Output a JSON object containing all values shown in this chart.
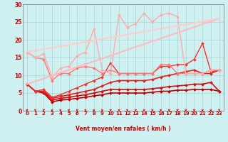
{
  "xlabel": "Vent moyen/en rafales ( km/h )",
  "xlim": [
    -0.5,
    23.5
  ],
  "ylim": [
    0,
    30
  ],
  "yticks": [
    0,
    5,
    10,
    15,
    20,
    25,
    30
  ],
  "xticks": [
    0,
    1,
    2,
    3,
    4,
    5,
    6,
    7,
    8,
    9,
    10,
    11,
    12,
    13,
    14,
    15,
    16,
    17,
    18,
    19,
    20,
    21,
    22,
    23
  ],
  "bg_color": "#cff0f0",
  "grid_color": "#99cccc",
  "series": [
    {
      "x": [
        0,
        1,
        2,
        3,
        4,
        5,
        6,
        7,
        8,
        9,
        10,
        11,
        12,
        13,
        14,
        15,
        16,
        17,
        18,
        19,
        20,
        21,
        22,
        23
      ],
      "y": [
        7.5,
        5.5,
        5.0,
        2.5,
        3.0,
        3.2,
        3.5,
        3.8,
        4.2,
        4.5,
        5.0,
        5.0,
        5.0,
        5.0,
        5.0,
        5.2,
        5.5,
        5.5,
        5.8,
        5.8,
        6.0,
        6.0,
        6.0,
        5.5
      ],
      "color": "#bb0000",
      "lw": 1.2,
      "marker": "D",
      "ms": 2.0
    },
    {
      "x": [
        0,
        1,
        2,
        3,
        4,
        5,
        6,
        7,
        8,
        9,
        10,
        11,
        12,
        13,
        14,
        15,
        16,
        17,
        18,
        19,
        20,
        21,
        22,
        23
      ],
      "y": [
        7.5,
        5.5,
        5.2,
        3.0,
        3.5,
        3.8,
        4.2,
        4.5,
        5.0,
        5.5,
        6.0,
        6.0,
        6.0,
        6.0,
        6.0,
        6.2,
        6.5,
        6.8,
        7.0,
        7.2,
        7.5,
        7.5,
        8.0,
        5.5
      ],
      "color": "#cc1111",
      "lw": 1.2,
      "marker": "D",
      "ms": 2.0
    },
    {
      "x": [
        0,
        1,
        2,
        3,
        4,
        5,
        6,
        7,
        8,
        9,
        10,
        11,
        12,
        13,
        14,
        15,
        16,
        17,
        18,
        19,
        20,
        21,
        22,
        23
      ],
      "y": [
        7.5,
        5.5,
        5.5,
        3.5,
        4.0,
        4.5,
        5.0,
        5.5,
        6.0,
        7.0,
        8.0,
        8.5,
        8.5,
        8.5,
        8.5,
        8.8,
        9.5,
        10.0,
        10.5,
        11.0,
        11.5,
        10.5,
        10.5,
        11.5
      ],
      "color": "#dd2222",
      "lw": 1.2,
      "marker": "D",
      "ms": 2.0
    },
    {
      "x": [
        0,
        1,
        2,
        3,
        4,
        5,
        6,
        7,
        8,
        9,
        10,
        11,
        12,
        13,
        14,
        15,
        16,
        17,
        18,
        19,
        20,
        21,
        22,
        23
      ],
      "y": [
        7.5,
        5.5,
        6.0,
        3.8,
        4.5,
        5.5,
        6.5,
        7.5,
        8.5,
        9.5,
        13.5,
        10.5,
        10.5,
        10.5,
        10.5,
        10.5,
        12.5,
        12.5,
        13.0,
        13.0,
        14.5,
        19.0,
        11.0,
        11.5
      ],
      "color": "#ee3333",
      "lw": 1.0,
      "marker": "D",
      "ms": 2.0
    },
    {
      "x": [
        0,
        1,
        2,
        3,
        4,
        5,
        6,
        7,
        8,
        9,
        10,
        11,
        12,
        13,
        14,
        15,
        16,
        17,
        18,
        19,
        20,
        21,
        22,
        23
      ],
      "y": [
        16.5,
        15.0,
        14.5,
        8.5,
        10.5,
        10.5,
        12.0,
        12.5,
        12.0,
        10.5,
        11.5,
        10.5,
        10.5,
        10.5,
        10.5,
        10.5,
        13.0,
        13.0,
        10.5,
        10.5,
        10.5,
        10.5,
        11.5,
        11.5
      ],
      "color": "#ff7777",
      "lw": 1.0,
      "marker": "D",
      "ms": 2.0
    },
    {
      "x": [
        0,
        1,
        2,
        3,
        4,
        5,
        6,
        7,
        8,
        9,
        10,
        11,
        12,
        13,
        14,
        15,
        16,
        17,
        18,
        19,
        20,
        21,
        22,
        23
      ],
      "y": [
        16.5,
        15.0,
        16.0,
        9.5,
        12.0,
        12.5,
        15.5,
        16.5,
        23.0,
        11.5,
        10.5,
        27.0,
        23.5,
        24.5,
        27.5,
        25.0,
        27.0,
        27.5,
        26.5,
        10.5,
        10.5,
        10.5,
        11.5,
        11.5
      ],
      "color": "#ffaaaa",
      "lw": 1.0,
      "marker": "D",
      "ms": 2.0
    },
    {
      "x": [
        0,
        23
      ],
      "y": [
        7.5,
        26.0
      ],
      "color": "#ffbbbb",
      "lw": 1.5,
      "marker": null,
      "ms": 0
    },
    {
      "x": [
        0,
        23
      ],
      "y": [
        16.5,
        26.0
      ],
      "color": "#ffcccc",
      "lw": 1.5,
      "marker": null,
      "ms": 0
    }
  ],
  "arrow_color": "#cc0000"
}
